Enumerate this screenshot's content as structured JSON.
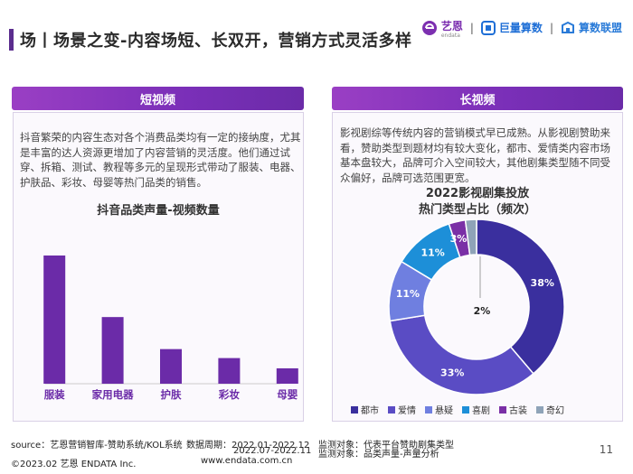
{
  "header": {
    "title": "场丨场景之变-内容场短、长双开，营销方式灵活多样",
    "logos": [
      {
        "text": "艺恩",
        "sub": "endata",
        "color": "#7c2fb0",
        "icon": "endata-logo-icon"
      },
      {
        "text": "巨量算数",
        "color": "#1f6fd6",
        "icon": "juliang-logo-icon"
      },
      {
        "text": "算数联盟",
        "color": "#2a7bd8",
        "icon": "suanshu-logo-icon"
      }
    ],
    "separator": "|"
  },
  "left_panel": {
    "heading": "短视频",
    "description": "抖音繁荣的内容生态对各个消费品类均有一定的接纳度，尤其是丰富的达人资源更增加了内容营销的灵活度。他们通过试穿、拆箱、测试、教程等多元的呈现形式带动了服装、电器、护肤品、彩妆、母婴等热门品类的销售。"
  },
  "right_panel": {
    "heading": "长视频",
    "description": "影视剧综等传统内容的营销模式早已成熟。从影视剧赞助来看，赞助类型到题材均有较大变化，都市、爱情类内容市场基本盘较大，品牌可介入空间较大，其他剧集类型随不同受众偏好，品牌可选范围更宽。"
  },
  "chart_data": [
    {
      "type": "bar",
      "title": "抖音品类声量-视频数量",
      "categories": [
        "服装",
        "家用电器",
        "护肤",
        "彩妆",
        "母婴"
      ],
      "values": [
        100,
        52,
        27,
        20,
        12
      ],
      "color": "#6b2ba8"
    },
    {
      "type": "pie",
      "title_lines": [
        "2022影视剧集投放",
        "热门类型占比（频次）"
      ],
      "labels": [
        "都市",
        "爱情",
        "悬疑",
        "喜剧",
        "古装",
        "奇幻"
      ],
      "values": [
        38,
        33,
        11,
        11,
        3,
        2
      ],
      "value_labels": [
        "38%",
        "33%",
        "11%",
        "11%",
        "3%",
        "2%"
      ],
      "colors": [
        "#3a2f9e",
        "#5a4cc4",
        "#6f7fe0",
        "#1d8fd8",
        "#7a2fa6",
        "#8fa3b8"
      ]
    }
  ],
  "footer": {
    "source": "source：艺恩营销智库-赞助系统/KOL系统",
    "period_label": "数据周期：2022.01-2022.12",
    "period_label2": "2022.07-2022.11",
    "monitor1": "监测对象：代表平台赞助剧集类型",
    "monitor2": "监测对象：品类声量-声量分析",
    "copyright": "©2023.02 艺恩 ENDATA Inc.",
    "website": "www.endata.com.cn",
    "page_number": "11"
  }
}
